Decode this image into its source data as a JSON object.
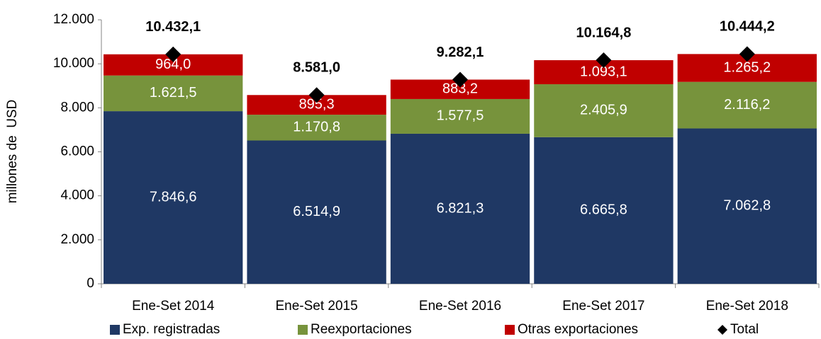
{
  "chart_data": {
    "type": "bar",
    "stacked": true,
    "y_label": "millones de  USD",
    "categories": [
      "Ene-Set 2014",
      "Ene-Set 2015",
      "Ene-Set 2016",
      "Ene-Set 2017",
      "Ene-Set 2018"
    ],
    "series": [
      {
        "name": "Exp. registradas",
        "color": "#1f3864",
        "values": [
          7846.6,
          6514.9,
          6821.3,
          6665.8,
          7062.8
        ],
        "value_labels": [
          "7.846,6",
          "6.514,9",
          "6.821,3",
          "6.665,8",
          "7.062,8"
        ]
      },
      {
        "name": "Reexportaciones",
        "color": "#77933c",
        "values": [
          1621.5,
          1170.8,
          1577.5,
          2405.9,
          2116.2
        ],
        "value_labels": [
          "1.621,5",
          "1.170,8",
          "1.577,5",
          "2.405,9",
          "2.116,2"
        ]
      },
      {
        "name": "Otras exportaciones",
        "color": "#c00000",
        "values": [
          964.0,
          895.3,
          883.2,
          1093.1,
          1265.2
        ],
        "value_labels": [
          "964,0",
          "895,3",
          "883,2",
          "1.093,1",
          "1.265,2"
        ]
      },
      {
        "name": "Total",
        "color": "#000000",
        "type": "marker",
        "values": [
          10432.1,
          8581.0,
          9282.1,
          10164.8,
          10444.2
        ],
        "value_labels": [
          "10.432,1",
          "8.581,0",
          "9.282,1",
          "10.164,8",
          "10.444,2"
        ]
      }
    ],
    "ylim": [
      0,
      12000
    ],
    "yticks": [
      0,
      {
        "value": 2000,
        "label": "2.000"
      },
      {
        "value": 4000,
        "label": "4.000"
      },
      {
        "value": 6000,
        "label": "6.000"
      },
      {
        "value": 8000,
        "label": "8.000"
      },
      {
        "value": 10000,
        "label": "10.000"
      },
      {
        "value": 12000,
        "label": "12.000"
      }
    ],
    "legend": "bottom"
  }
}
